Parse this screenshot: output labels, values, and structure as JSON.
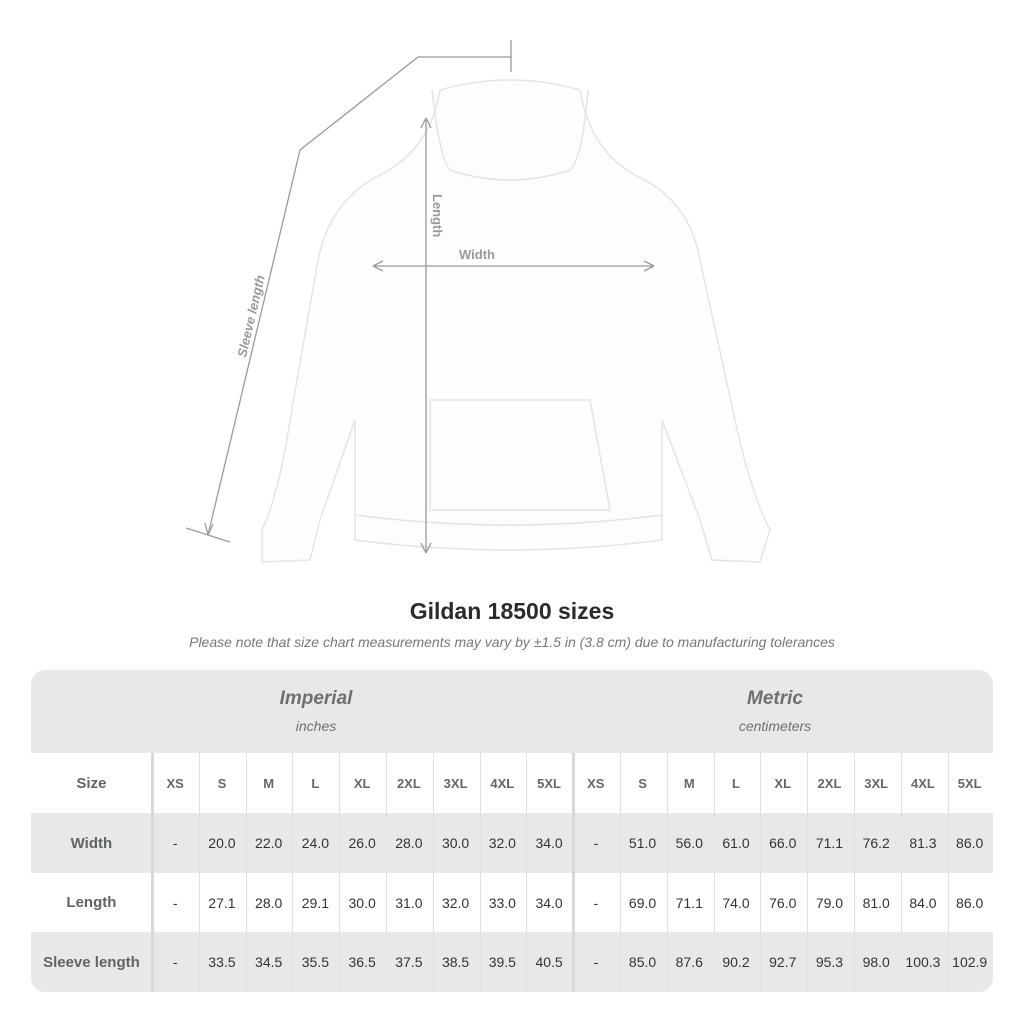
{
  "illustration": {
    "labels": {
      "sleeve": "Sleeve length",
      "length": "Length",
      "width": "Width"
    }
  },
  "title": "Gildan 18500 sizes",
  "note": "Please note that size chart measurements may vary by ±1.5 in (3.8 cm) due to manufacturing tolerances",
  "imperial": {
    "heading": "Imperial",
    "unit": "inches"
  },
  "metric": {
    "heading": "Metric",
    "unit": "centimeters"
  },
  "size_label": "Size",
  "sizes": [
    "XS",
    "S",
    "M",
    "L",
    "XL",
    "2XL",
    "3XL",
    "4XL",
    "5XL"
  ],
  "rows": [
    {
      "label": "Width",
      "imperial": [
        "-",
        "20.0",
        "22.0",
        "24.0",
        "26.0",
        "28.0",
        "30.0",
        "32.0",
        "34.0"
      ],
      "metric": [
        "-",
        "51.0",
        "56.0",
        "61.0",
        "66.0",
        "71.1",
        "76.2",
        "81.3",
        "86.0"
      ]
    },
    {
      "label": "Length",
      "imperial": [
        "-",
        "27.1",
        "28.0",
        "29.1",
        "30.0",
        "31.0",
        "32.0",
        "33.0",
        "34.0"
      ],
      "metric": [
        "-",
        "69.0",
        "71.1",
        "74.0",
        "76.0",
        "79.0",
        "81.0",
        "84.0",
        "86.0"
      ]
    },
    {
      "label": "Sleeve length",
      "imperial": [
        "-",
        "33.5",
        "34.5",
        "35.5",
        "36.5",
        "37.5",
        "38.5",
        "39.5",
        "40.5"
      ],
      "metric": [
        "-",
        "85.0",
        "87.6",
        "90.2",
        "92.7",
        "95.3",
        "98.0",
        "100.3",
        "102.9"
      ]
    }
  ],
  "colors": {
    "band": "#e8e8e8",
    "text": "#333333",
    "label": "#5f6467"
  }
}
